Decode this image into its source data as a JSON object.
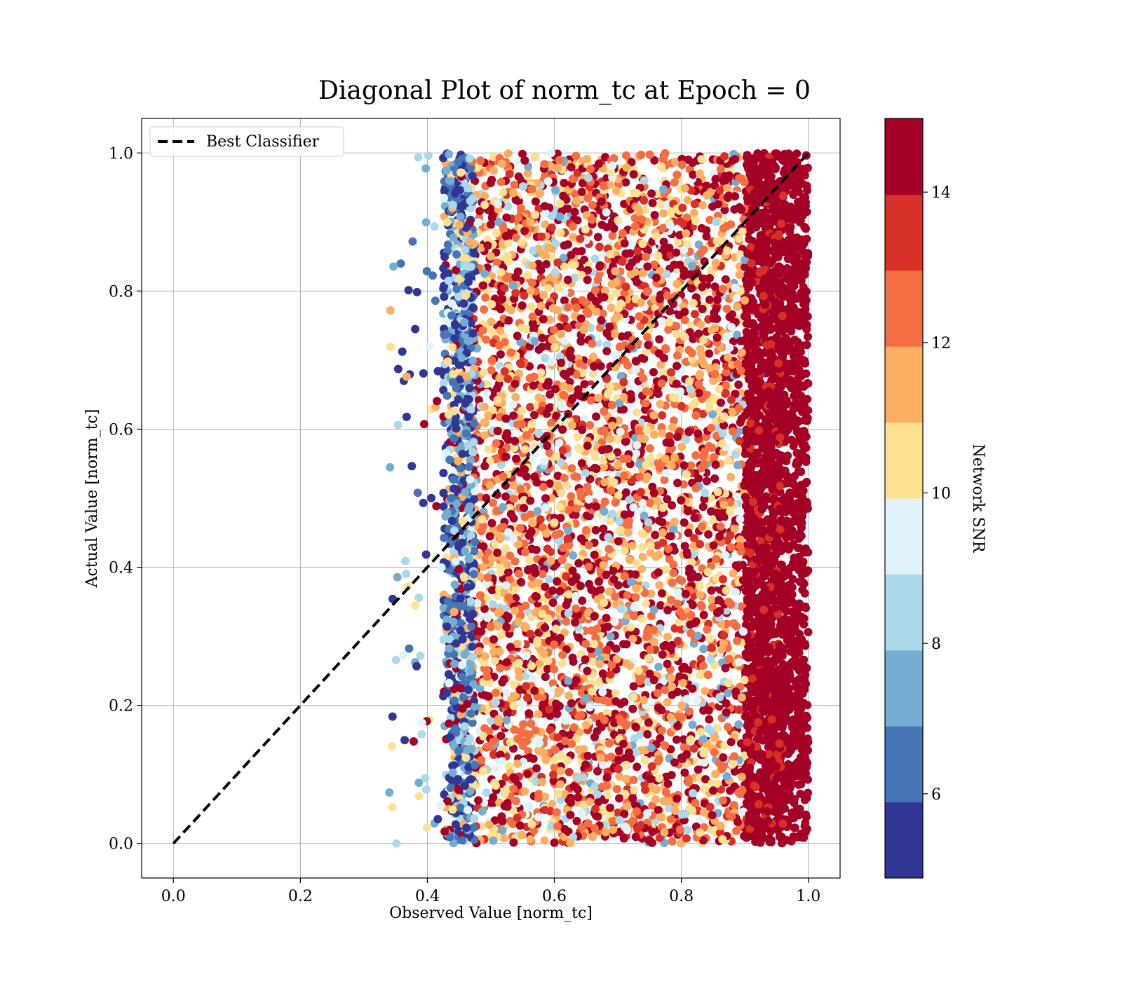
{
  "chart_data": {
    "type": "scatter",
    "title": "Diagonal Plot of norm_tc at Epoch = 0",
    "xlabel": "Observed Value [norm_tc]",
    "ylabel": "Actual Value [norm_tc]",
    "xlim": [
      -0.05,
      1.05
    ],
    "ylim": [
      -0.05,
      1.05
    ],
    "xticks": [
      "0.0",
      "0.2",
      "0.4",
      "0.6",
      "0.8",
      "1.0"
    ],
    "yticks": [
      "0.0",
      "0.2",
      "0.4",
      "0.6",
      "0.8",
      "1.0"
    ],
    "grid": true,
    "legend": {
      "placement": "upper-left",
      "entries": [
        "Best Classifier"
      ]
    },
    "reference_line": {
      "name": "Best Classifier",
      "style": "dashed",
      "color": "#000000",
      "points": [
        [
          0,
          0
        ],
        [
          1,
          1
        ]
      ]
    },
    "scatter_extent": {
      "x_core": [
        0.44,
        1.0
      ],
      "x_outliers_min": 0.34,
      "y": [
        0.0,
        1.0
      ],
      "note_high_snr_dense_from_x": 0.9
    },
    "colorbar": {
      "label": "Network SNR",
      "range": [
        4.88,
        14.98
      ],
      "ticks": [
        "6",
        "8",
        "10",
        "12",
        "14"
      ],
      "tick_values": [
        6,
        8,
        10,
        12,
        14
      ],
      "bin_colors": [
        "#313695",
        "#4575b4",
        "#74add1",
        "#abd9e9",
        "#e0f3f8",
        "#fee090",
        "#fdae61",
        "#f46d43",
        "#d73027",
        "#a50026"
      ]
    }
  }
}
